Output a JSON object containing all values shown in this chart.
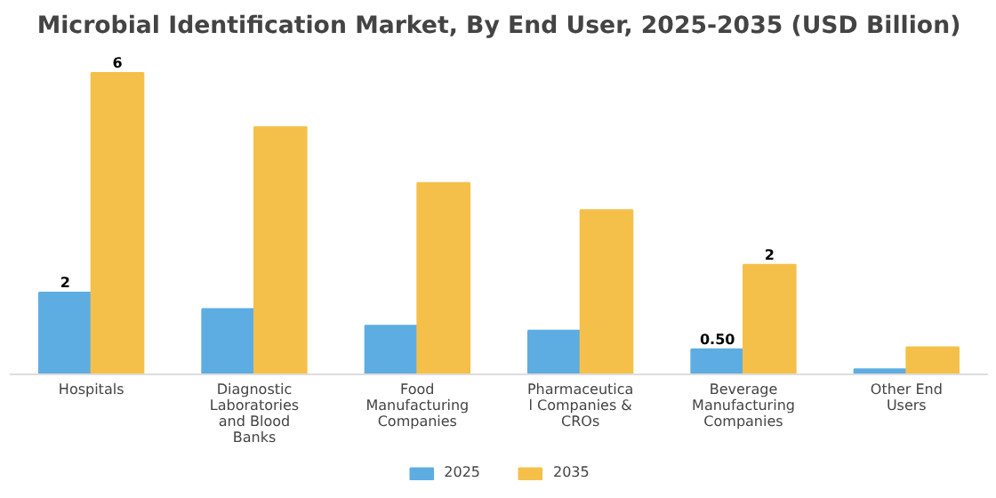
{
  "chart_data": {
    "type": "bar",
    "title": "Microbial Identification Market, By End User, 2025-2035 (USD Billion)",
    "categories": [
      "Hospitals",
      "Diagnostic Laboratories and Blood Banks",
      "Food Manufacturing Companies",
      "Pharmaceutical Companies & CROs",
      "Beverage Manufacturing Companies",
      "Other End Users"
    ],
    "series": [
      {
        "name": "2025",
        "color": "#5dade2",
        "values": [
          1.63,
          1.3,
          0.97,
          0.87,
          0.5,
          0.1
        ],
        "value_labels": [
          "2",
          null,
          null,
          null,
          "0.50",
          null
        ]
      },
      {
        "name": "2035",
        "color": "#f5c04a",
        "values": [
          6.0,
          4.92,
          3.81,
          3.27,
          2.18,
          0.54
        ],
        "value_labels": [
          "6",
          null,
          null,
          null,
          "2",
          null
        ]
      }
    ],
    "legend": "bottom"
  }
}
